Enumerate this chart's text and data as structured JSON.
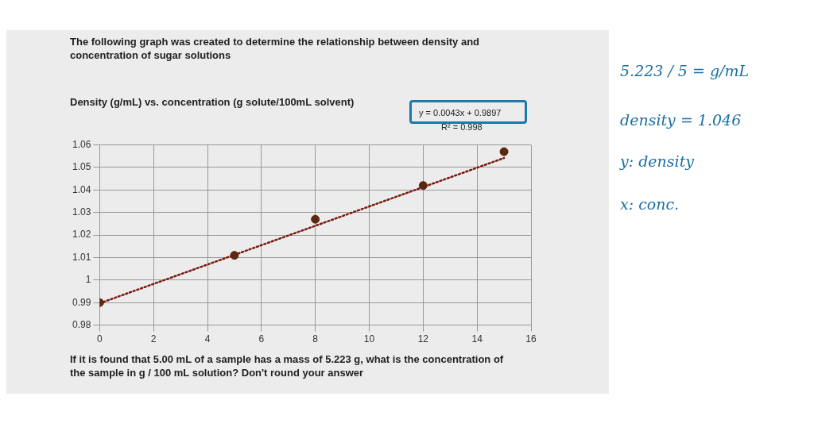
{
  "chart_data": {
    "type": "scatter",
    "title": "Density (g/mL) vs. concentration (g solute/100mL solvent)",
    "xlim": [
      0,
      16
    ],
    "xticks": [
      0,
      2,
      4,
      6,
      8,
      10,
      12,
      14,
      16
    ],
    "ylim": [
      0.98,
      1.06
    ],
    "yticks": [
      0.98,
      0.99,
      1,
      1.01,
      1.02,
      1.03,
      1.04,
      1.05,
      1.06
    ],
    "grid": true,
    "legend": false,
    "marker": "circle",
    "series": [
      {
        "type": "scatter",
        "color": "#5a2810",
        "x": [
          0,
          5,
          8,
          12,
          15
        ],
        "values": [
          0.99,
          1.011,
          1.027,
          1.042,
          1.057
        ]
      },
      {
        "type": "line",
        "color": "#7a1a10",
        "line_style": "dotted",
        "marker": "none",
        "x": [
          0,
          15
        ],
        "values": [
          0.9897,
          1.0542
        ]
      }
    ],
    "annotations": [
      "The following graph was created to determine the relationship between density and concentration of sugar solutions",
      "y = 0.0043x + 0.9897",
      "R² = 0.998",
      "If it is found that 5.00 mL of a sample has a mass of 5.223 g, what is the concentration of the sample in g / 100 mL solution? Don't round your answer",
      "5.223 / 5 = g/mL",
      "density = 1.046",
      "y: density",
      "x: conc."
    ]
  }
}
